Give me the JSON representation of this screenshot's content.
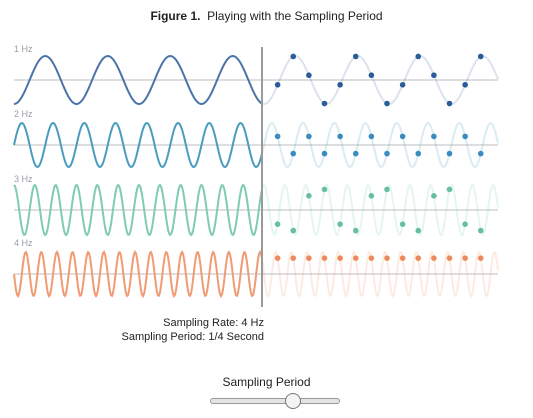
{
  "figure": {
    "number": "Figure 1.",
    "title": "Playing with the Sampling Period"
  },
  "rows": [
    {
      "label": "1 Hz",
      "frequency": 1,
      "color": "#4a74a8",
      "point_color": "#2a5c98"
    },
    {
      "label": "2 Hz",
      "frequency": 2,
      "color": "#4a9cbf",
      "point_color": "#3a8cc0"
    },
    {
      "label": "3 Hz",
      "frequency": 3,
      "color": "#7fcbb4",
      "point_color": "#66bf9f"
    },
    {
      "label": "4 Hz",
      "frequency": 4,
      "color": "#ef9b73",
      "point_color": "#ec8a5e"
    }
  ],
  "sampling": {
    "rate_text": "Sampling Rate: 4 Hz",
    "period_text": "Sampling Period: 1/4 Second",
    "rate_hz": 4
  },
  "slider": {
    "label": "Sampling Period",
    "value_fraction": 0.64
  }
}
